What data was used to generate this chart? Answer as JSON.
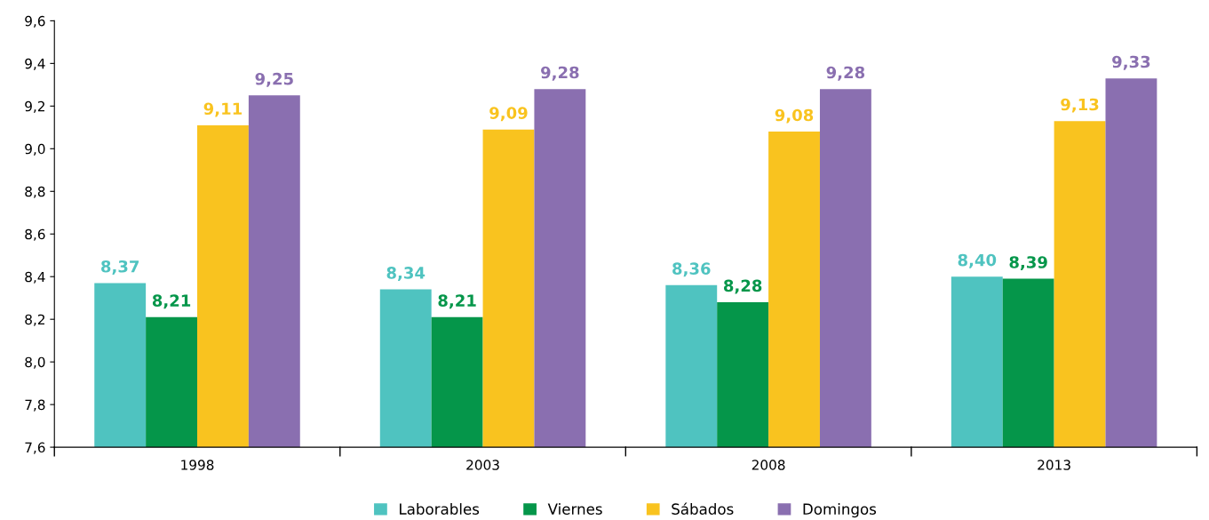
{
  "chart_data": {
    "type": "bar",
    "categories": [
      "1998",
      "2003",
      "2008",
      "2013"
    ],
    "series": [
      {
        "name": "Laborables",
        "color": "#4fc3c0",
        "values": [
          8.37,
          8.34,
          8.36,
          8.4
        ],
        "value_labels": [
          "8,37",
          "8,34",
          "8,36",
          "8,40"
        ]
      },
      {
        "name": "Viernes",
        "color": "#05964a",
        "values": [
          8.21,
          8.21,
          8.28,
          8.39
        ],
        "value_labels": [
          "8,21",
          "8,21",
          "8,28",
          "8,39"
        ]
      },
      {
        "name": "Sábados",
        "color": "#f9c31f",
        "values": [
          9.11,
          9.09,
          9.08,
          9.13
        ],
        "value_labels": [
          "9,11",
          "9,09",
          "9,08",
          "9,13"
        ]
      },
      {
        "name": "Domingos",
        "color": "#8a6fb0",
        "values": [
          9.25,
          9.28,
          9.28,
          9.33
        ],
        "value_labels": [
          "9,25",
          "9,28",
          "9,28",
          "9,33"
        ]
      }
    ],
    "ylim": [
      7.6,
      9.6
    ],
    "yticks": [
      {
        "value": 7.6,
        "label": "7,6"
      },
      {
        "value": 7.8,
        "label": "7,8"
      },
      {
        "value": 8.0,
        "label": "8,0"
      },
      {
        "value": 8.2,
        "label": "8,2"
      },
      {
        "value": 8.4,
        "label": "8,4"
      },
      {
        "value": 8.6,
        "label": "8,6"
      },
      {
        "value": 8.8,
        "label": "8,8"
      },
      {
        "value": 9.0,
        "label": "9,0"
      },
      {
        "value": 9.2,
        "label": "9,2"
      },
      {
        "value": 9.4,
        "label": "9,4"
      },
      {
        "value": 9.6,
        "label": "9,6"
      }
    ],
    "grid": false,
    "legend": "bottom"
  }
}
